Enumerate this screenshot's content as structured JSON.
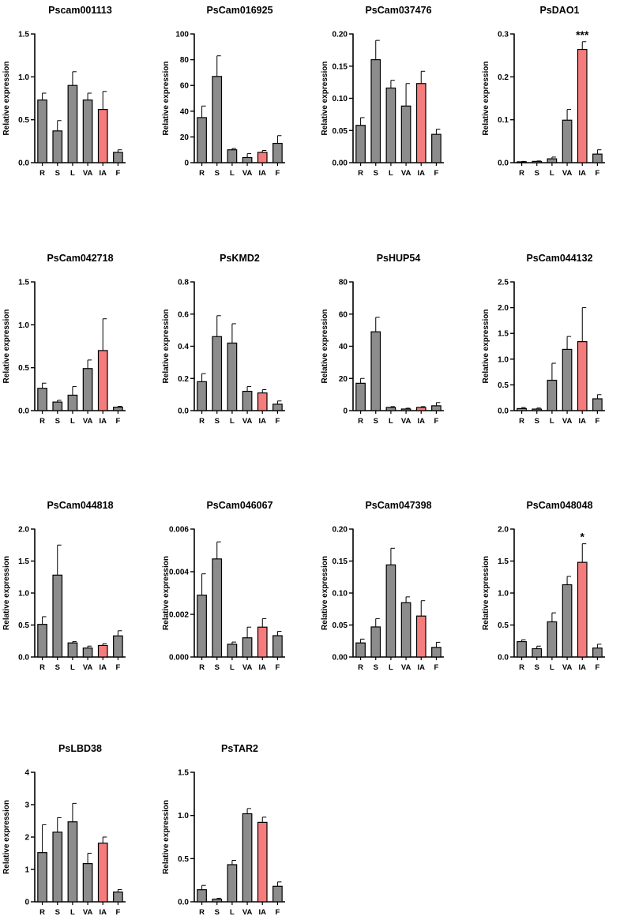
{
  "figure": {
    "highlight_color": "#F47C7C",
    "bar_color": "#8C8C8C",
    "edge_color": "#000000"
  },
  "chart_data": [
    {
      "type": "bar",
      "title": "Pscam001113",
      "ylabel": "Relative expression",
      "categories": [
        "R",
        "S",
        "L",
        "VA",
        "IA",
        "F"
      ],
      "values": [
        0.73,
        0.37,
        0.9,
        0.73,
        0.62,
        0.12
      ],
      "errors": [
        0.08,
        0.12,
        0.16,
        0.08,
        0.21,
        0.03
      ],
      "ylim": [
        0,
        1.5
      ],
      "yticks": [
        0,
        0.5,
        1,
        1.5
      ],
      "ytick_labels": [
        "0.0",
        "0.5",
        "1.0",
        "1.5"
      ],
      "highlight_index": 4,
      "significance": ""
    },
    {
      "type": "bar",
      "title": "PsCam016925",
      "ylabel": "Relative expression",
      "categories": [
        "R",
        "S",
        "L",
        "VA",
        "IA",
        "F"
      ],
      "values": [
        35,
        67,
        10,
        4,
        8,
        15
      ],
      "errors": [
        9,
        16,
        1,
        3,
        1.5,
        6
      ],
      "ylim": [
        0,
        100
      ],
      "yticks": [
        0,
        20,
        40,
        60,
        80,
        100
      ],
      "ytick_labels": [
        "0",
        "20",
        "40",
        "60",
        "80",
        "100"
      ],
      "highlight_index": 4,
      "significance": ""
    },
    {
      "type": "bar",
      "title": "PsCam037476",
      "ylabel": "Relative expression",
      "categories": [
        "R",
        "S",
        "L",
        "VA",
        "IA",
        "F"
      ],
      "values": [
        0.058,
        0.16,
        0.116,
        0.088,
        0.123,
        0.044
      ],
      "errors": [
        0.012,
        0.03,
        0.012,
        0.035,
        0.019,
        0.008
      ],
      "ylim": [
        0,
        0.2
      ],
      "yticks": [
        0,
        0.05,
        0.1,
        0.15,
        0.2
      ],
      "ytick_labels": [
        "0.00",
        "0.05",
        "0.10",
        "0.15",
        "0.20"
      ],
      "highlight_index": 4,
      "significance": ""
    },
    {
      "type": "bar",
      "title": "PsDAO1",
      "ylabel": "Relative expression",
      "categories": [
        "R",
        "S",
        "L",
        "VA",
        "IA",
        "F"
      ],
      "values": [
        0.002,
        0.003,
        0.009,
        0.099,
        0.264,
        0.02
      ],
      "errors": [
        0.001,
        0.001,
        0.004,
        0.025,
        0.018,
        0.01
      ],
      "ylim": [
        0,
        0.3
      ],
      "yticks": [
        0,
        0.1,
        0.2,
        0.3
      ],
      "ytick_labels": [
        "0.0",
        "0.1",
        "0.2",
        "0.3"
      ],
      "highlight_index": 4,
      "significance": "***"
    },
    {
      "type": "bar",
      "title": "PsCam042718",
      "ylabel": "Relative expression",
      "categories": [
        "R",
        "S",
        "L",
        "VA",
        "IA",
        "F"
      ],
      "values": [
        0.26,
        0.1,
        0.18,
        0.49,
        0.7,
        0.04
      ],
      "errors": [
        0.06,
        0.02,
        0.1,
        0.1,
        0.37,
        0.01
      ],
      "ylim": [
        0,
        1.5
      ],
      "yticks": [
        0,
        0.5,
        1,
        1.5
      ],
      "ytick_labels": [
        "0.0",
        "0.5",
        "1.0",
        "1.5"
      ],
      "highlight_index": 4,
      "significance": ""
    },
    {
      "type": "bar",
      "title": "PsKMD2",
      "ylabel": "Relative expression",
      "categories": [
        "R",
        "S",
        "L",
        "VA",
        "IA",
        "F"
      ],
      "values": [
        0.18,
        0.46,
        0.42,
        0.12,
        0.11,
        0.04
      ],
      "errors": [
        0.05,
        0.13,
        0.12,
        0.03,
        0.02,
        0.02
      ],
      "ylim": [
        0,
        0.8
      ],
      "yticks": [
        0,
        0.2,
        0.4,
        0.6,
        0.8
      ],
      "ytick_labels": [
        "0.0",
        "0.2",
        "0.4",
        "0.6",
        "0.8"
      ],
      "highlight_index": 4,
      "significance": ""
    },
    {
      "type": "bar",
      "title": "PsHUP54",
      "ylabel": "Relative expression",
      "categories": [
        "R",
        "S",
        "L",
        "VA",
        "IA",
        "F"
      ],
      "values": [
        17,
        49,
        2,
        1,
        2,
        3
      ],
      "errors": [
        3,
        9,
        0.5,
        0.5,
        0.5,
        2
      ],
      "ylim": [
        0,
        80
      ],
      "yticks": [
        0,
        20,
        40,
        60,
        80
      ],
      "ytick_labels": [
        "0",
        "20",
        "40",
        "60",
        "80"
      ],
      "highlight_index": 4,
      "significance": ""
    },
    {
      "type": "bar",
      "title": "PsCam044132",
      "ylabel": "Relative expression",
      "categories": [
        "R",
        "S",
        "L",
        "VA",
        "IA",
        "F"
      ],
      "values": [
        0.04,
        0.03,
        0.59,
        1.19,
        1.34,
        0.23
      ],
      "errors": [
        0.02,
        0.02,
        0.33,
        0.25,
        0.66,
        0.08
      ],
      "ylim": [
        0,
        2.5
      ],
      "yticks": [
        0,
        0.5,
        1,
        1.5,
        2,
        2.5
      ],
      "ytick_labels": [
        "0.0",
        "0.5",
        "1.0",
        "1.5",
        "2.0",
        "2.5"
      ],
      "highlight_index": 4,
      "significance": ""
    },
    {
      "type": "bar",
      "title": "PsCam044818",
      "ylabel": "Relative expression",
      "categories": [
        "R",
        "S",
        "L",
        "VA",
        "IA",
        "F"
      ],
      "values": [
        0.51,
        1.28,
        0.22,
        0.14,
        0.18,
        0.33
      ],
      "errors": [
        0.12,
        0.47,
        0.02,
        0.03,
        0.03,
        0.08
      ],
      "ylim": [
        0,
        2.0
      ],
      "yticks": [
        0,
        0.5,
        1,
        1.5,
        2
      ],
      "ytick_labels": [
        "0.0",
        "0.5",
        "1.0",
        "1.5",
        "2.0"
      ],
      "highlight_index": 4,
      "significance": ""
    },
    {
      "type": "bar",
      "title": "PsCam046067",
      "ylabel": "Relative expression",
      "categories": [
        "R",
        "S",
        "L",
        "VA",
        "IA",
        "F"
      ],
      "values": [
        0.0029,
        0.0046,
        0.0006,
        0.0009,
        0.0014,
        0.001
      ],
      "errors": [
        0.001,
        0.0008,
        0.0001,
        0.0005,
        0.0004,
        0.0002
      ],
      "ylim": [
        0,
        0.006
      ],
      "yticks": [
        0,
        0.002,
        0.004,
        0.006
      ],
      "ytick_labels": [
        "0.000",
        "0.002",
        "0.004",
        "0.006"
      ],
      "highlight_index": 4,
      "significance": ""
    },
    {
      "type": "bar",
      "title": "PsCam047398",
      "ylabel": "Relative expression",
      "categories": [
        "R",
        "S",
        "L",
        "VA",
        "IA",
        "F"
      ],
      "values": [
        0.022,
        0.047,
        0.144,
        0.085,
        0.064,
        0.015
      ],
      "errors": [
        0.006,
        0.013,
        0.026,
        0.009,
        0.024,
        0.008
      ],
      "ylim": [
        0,
        0.2
      ],
      "yticks": [
        0,
        0.05,
        0.1,
        0.15,
        0.2
      ],
      "ytick_labels": [
        "0.00",
        "0.05",
        "0.10",
        "0.15",
        "0.20"
      ],
      "highlight_index": 4,
      "significance": ""
    },
    {
      "type": "bar",
      "title": "PsCam048048",
      "ylabel": "Relative expression",
      "categories": [
        "R",
        "S",
        "L",
        "VA",
        "IA",
        "F"
      ],
      "values": [
        0.24,
        0.13,
        0.55,
        1.13,
        1.48,
        0.14
      ],
      "errors": [
        0.03,
        0.04,
        0.14,
        0.13,
        0.29,
        0.06
      ],
      "ylim": [
        0,
        2.0
      ],
      "yticks": [
        0,
        0.5,
        1,
        1.5,
        2
      ],
      "ytick_labels": [
        "0.0",
        "0.5",
        "1.0",
        "1.5",
        "2.0"
      ],
      "highlight_index": 4,
      "significance": "*"
    },
    {
      "type": "bar",
      "title": "PsLBD38",
      "ylabel": "Relative expression",
      "categories": [
        "R",
        "S",
        "L",
        "VA",
        "IA",
        "F"
      ],
      "values": [
        1.52,
        2.15,
        2.47,
        1.18,
        1.81,
        0.3
      ],
      "errors": [
        0.86,
        0.45,
        0.57,
        0.32,
        0.19,
        0.08
      ],
      "ylim": [
        0,
        4
      ],
      "yticks": [
        0,
        1,
        2,
        3,
        4
      ],
      "ytick_labels": [
        "0",
        "1",
        "2",
        "3",
        "4"
      ],
      "highlight_index": 4,
      "significance": ""
    },
    {
      "type": "bar",
      "title": "PsTAR2",
      "ylabel": "Relative expression",
      "categories": [
        "R",
        "S",
        "L",
        "VA",
        "IA",
        "F"
      ],
      "values": [
        0.14,
        0.03,
        0.43,
        1.02,
        0.92,
        0.18
      ],
      "errors": [
        0.05,
        0.01,
        0.05,
        0.06,
        0.06,
        0.05
      ],
      "ylim": [
        0,
        1.5
      ],
      "yticks": [
        0,
        0.5,
        1,
        1.5
      ],
      "ytick_labels": [
        "0.0",
        "0.5",
        "1.0",
        "1.5"
      ],
      "highlight_index": 4,
      "significance": ""
    }
  ]
}
